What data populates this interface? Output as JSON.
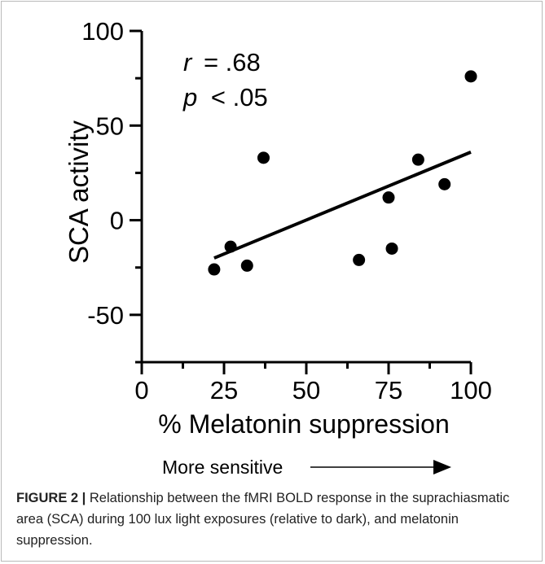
{
  "chart_data": {
    "type": "scatter",
    "x": [
      22,
      27,
      32,
      37,
      66,
      75,
      76,
      84,
      92,
      100
    ],
    "y": [
      -26,
      -14,
      -24,
      33,
      -21,
      12,
      -15,
      32,
      19,
      76
    ],
    "xlabel": "% Melatonin suppression",
    "ylabel": "SCA activity",
    "xlim": [
      0,
      100
    ],
    "ylim": [
      -75,
      100
    ],
    "xticks": [
      "0",
      "25",
      "50",
      "75",
      "100"
    ],
    "yticks": [
      "100",
      "50",
      "0",
      "-50"
    ],
    "fit_line": {
      "x": [
        22,
        100
      ],
      "y": [
        -20,
        36
      ]
    },
    "annotations": {
      "r_symbol": "r",
      "r_value": "= .68",
      "p_symbol": "p",
      "p_value": "< .05"
    },
    "arrow_label": "More sensitive",
    "grid": false,
    "legend": "none"
  },
  "caption": {
    "lead": "FIGURE 2 |",
    "text": " Relationship between the fMRI BOLD response in the suprachiasmatic area (SCA) during 100 lux light exposures (relative to dark), and melatonin suppression."
  }
}
